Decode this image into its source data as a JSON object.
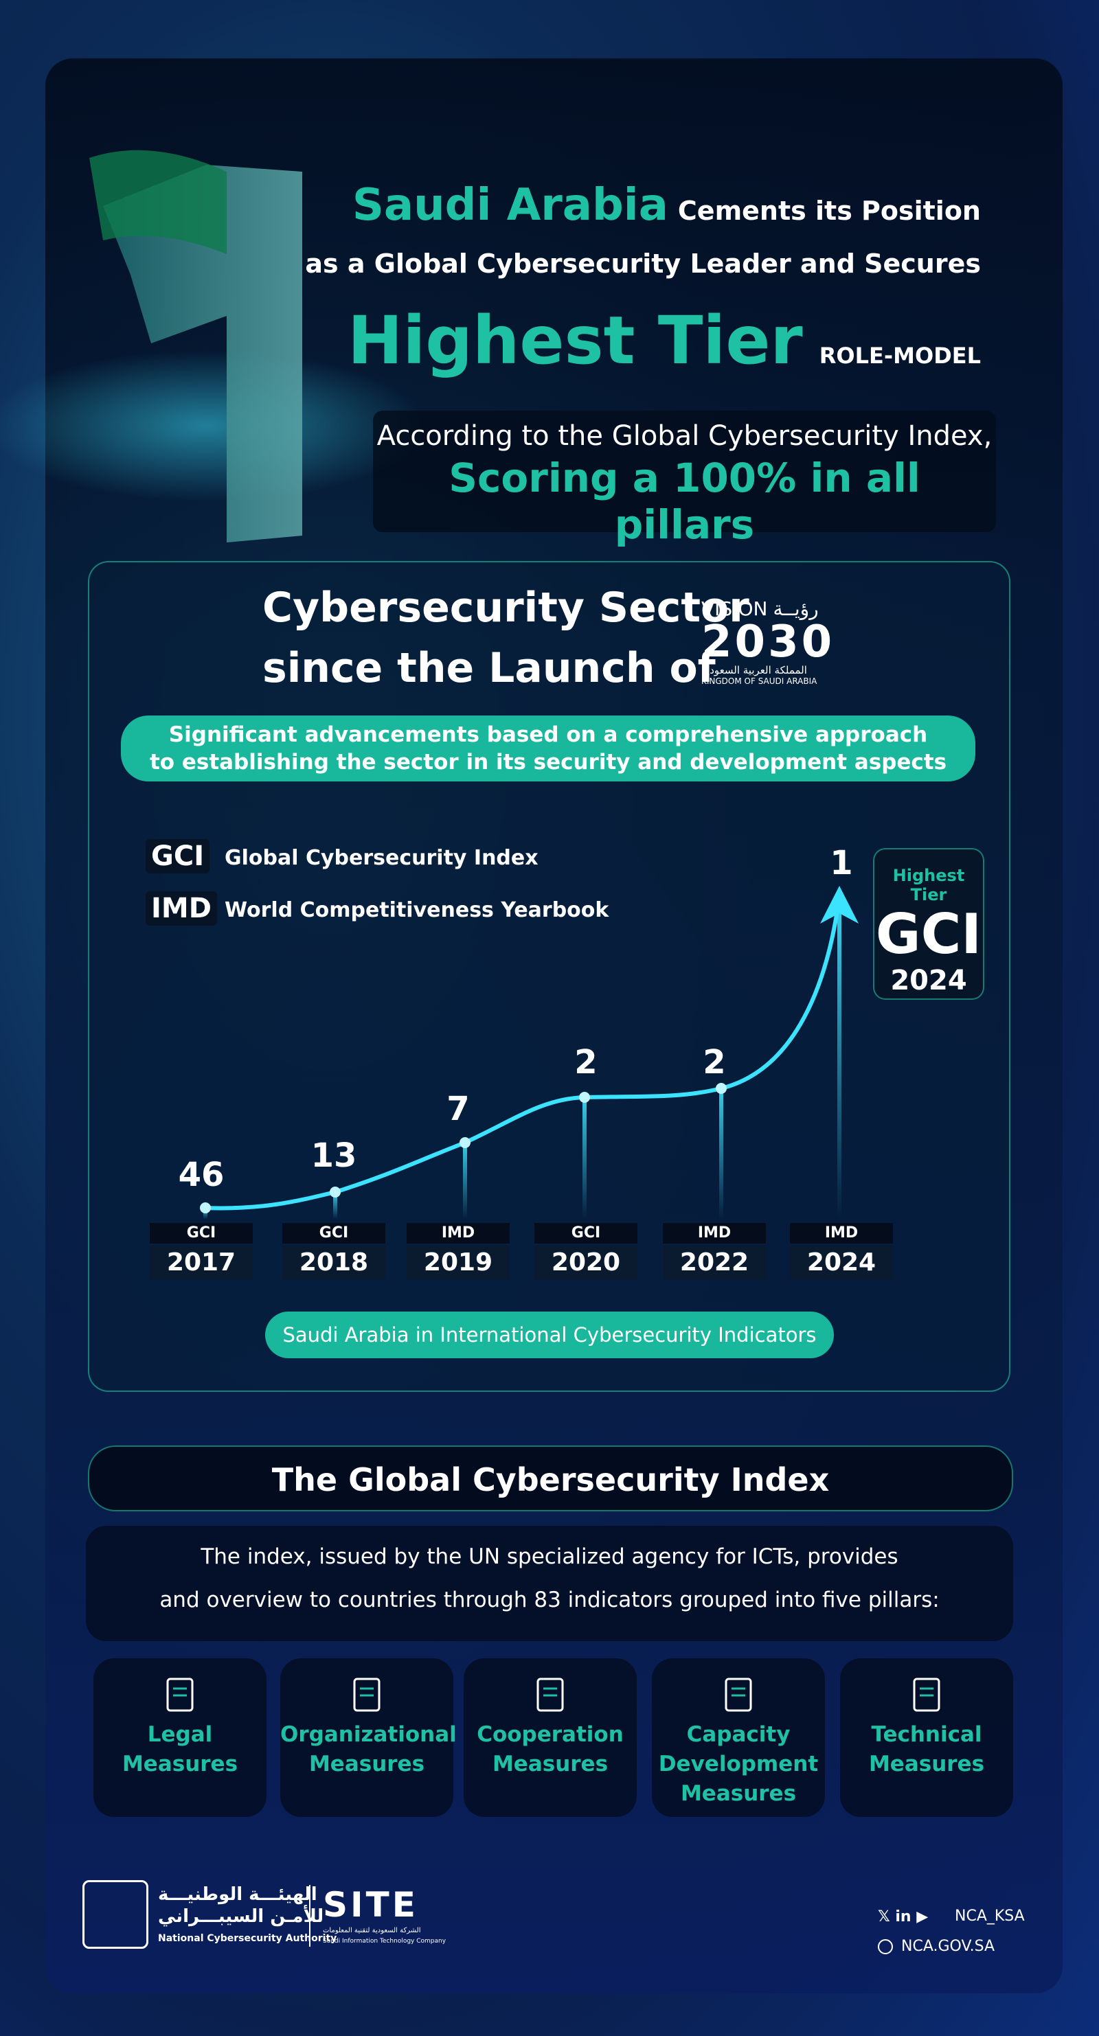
{
  "header": {
    "title_highlight": "Saudi Arabia",
    "title_line1": "Cements its Position",
    "title_line2": "as a Global Cybersecurity Leader and Secures",
    "tier": "Highest Tier",
    "tier_tag": "ROLE-MODEL",
    "index_line": "According to the Global Cybersecurity Index,",
    "score_line": "Scoring a 100% in all pillars"
  },
  "sector": {
    "title_line1": "Cybersecurity Sector",
    "title_line2": "since the Launch of",
    "vision_logo": {
      "vision": "VISION",
      "arabic_vision": "رؤيــة",
      "year": "2030",
      "arabic_kingdom": "المملكة العربية السعودية",
      "kingdom": "KINGDOM OF SAUDI ARABIA"
    },
    "banner_line1": "Significant advancements based on a comprehensive approach",
    "banner_line2": "to establishing the sector in its security and development aspects",
    "legend": [
      {
        "abbr": "GCI",
        "label": "Global Cybersecurity Index"
      },
      {
        "abbr": "IMD",
        "label": "World Competitiveness Yearbook"
      }
    ],
    "milestones": [
      {
        "rank": 46,
        "index": "GCI",
        "year": "2017"
      },
      {
        "rank": 13,
        "index": "GCI",
        "year": "2018"
      },
      {
        "rank": 7,
        "index": "IMD",
        "year": "2019"
      },
      {
        "rank": 2,
        "index": "GCI",
        "year": "2020"
      },
      {
        "rank": 2,
        "index": "IMD",
        "year": "2022"
      },
      {
        "rank": 1,
        "index": "IMD",
        "year": "2024"
      }
    ],
    "badge": {
      "label": "Highest Tier",
      "index": "GCI",
      "year": "2024"
    },
    "footer_pill": "Saudi Arabia in International Cybersecurity Indicators"
  },
  "gci": {
    "title": "The Global Cybersecurity Index",
    "desc_line1": "The index, issued by the UN specialized agency for ICTs, provides",
    "desc_line2": "and overview to countries through 83 indicators grouped into five pillars:",
    "pillars": [
      [
        "Legal",
        "Measures"
      ],
      [
        "Organizational",
        "Measures"
      ],
      [
        "Cooperation",
        "Measures"
      ],
      [
        "Capacity",
        "Development",
        "Measures"
      ],
      [
        "Technical",
        "Measures"
      ]
    ]
  },
  "footer": {
    "nca_arabic_1": "الهيئـــة الوطنيـــة",
    "nca_arabic_2": "للأمـن السيبـــراني",
    "nca_name": "National Cybersecurity Authority",
    "site": "SITE",
    "site_arabic": "الشركة السعودية لتقنية المعلومات",
    "site_name": "Saudi Information Technology Company",
    "handle": "NCA_KSA",
    "website": "NCA.GOV.SA"
  }
}
